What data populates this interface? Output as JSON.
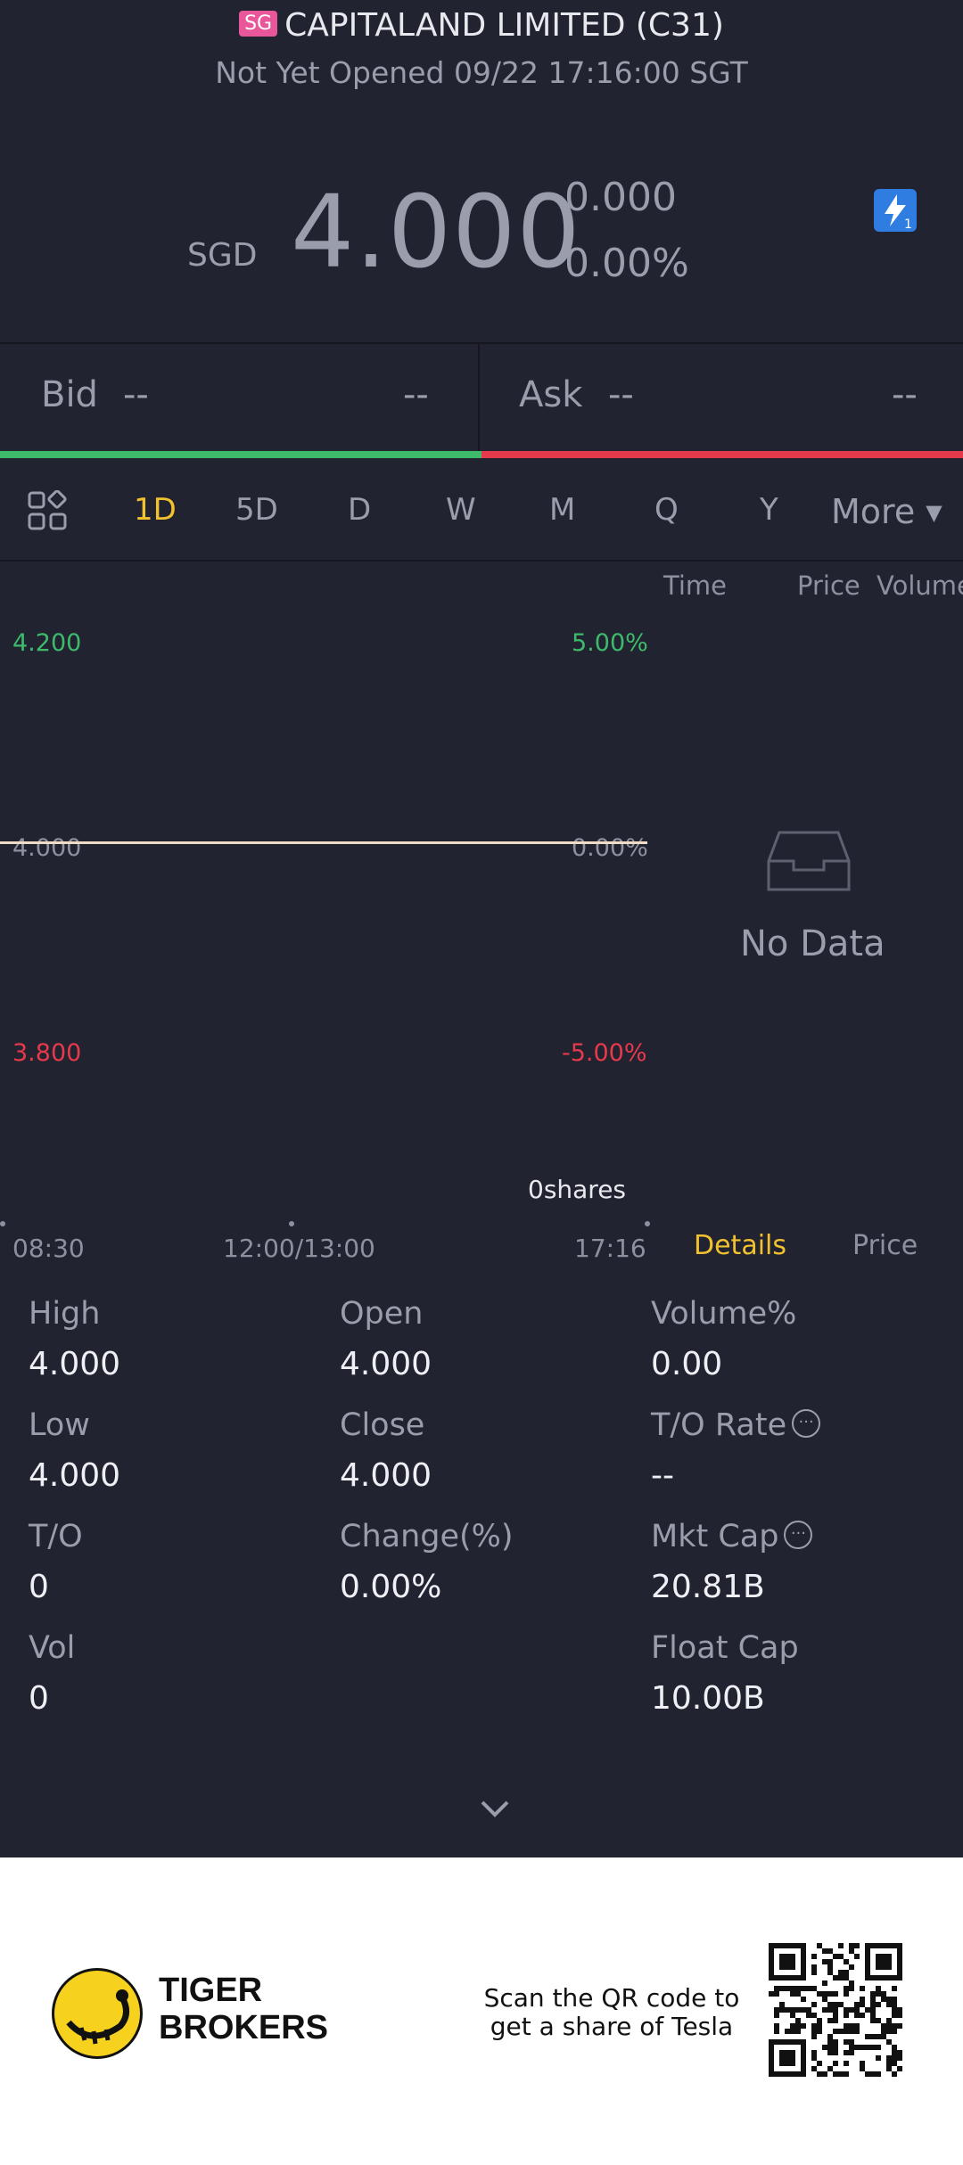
{
  "header": {
    "market_badge": "SG",
    "title": "CAPITALAND LIMITED (C31)",
    "status": "Not Yet Opened 09/22 17:16:00 SGT"
  },
  "quote": {
    "currency": "SGD",
    "price": "4.000",
    "change": "0.000",
    "change_pct": "0.00%",
    "flash_icon": "lightning-badge-icon"
  },
  "bid": {
    "label": "Bid",
    "price": "--",
    "size": "--"
  },
  "ask": {
    "label": "Ask",
    "price": "--",
    "size": "--"
  },
  "tabs": [
    "1D",
    "5D",
    "D",
    "W",
    "M",
    "Q",
    "Y"
  ],
  "active_tab": "1D",
  "more_label": "More",
  "chart_data": {
    "type": "line",
    "y_labels_left": [
      "4.200",
      "4.000",
      "3.800"
    ],
    "y_labels_right": [
      "5.00%",
      "0.00%",
      "-5.00%"
    ],
    "ylim": [
      3.8,
      4.2
    ],
    "x_labels": [
      "08:30",
      "12:00/13:00",
      "17:16"
    ],
    "series": [
      {
        "values": [
          4.0,
          4.0
        ]
      }
    ],
    "volume_label": "0shares",
    "colors": {
      "up": "#3dbb6b",
      "down": "#e6394b",
      "line": "#f0dcc5"
    }
  },
  "side_panel": {
    "headers": [
      "Time",
      "Price",
      "Volume"
    ],
    "empty_text": "No Data",
    "tabs": [
      "Details",
      "Price"
    ],
    "active_tab": "Details"
  },
  "stats": [
    {
      "label": "High",
      "value": "4.000"
    },
    {
      "label": "Open",
      "value": "4.000"
    },
    {
      "label": "Volume%",
      "value": "0.00"
    },
    {
      "label": "Low",
      "value": "4.000"
    },
    {
      "label": "Close",
      "value": "4.000"
    },
    {
      "label": "T/O Rate",
      "value": "--"
    },
    {
      "label": "T/O",
      "value": "0"
    },
    {
      "label": "Change(%)",
      "value": "0.00%"
    },
    {
      "label": "Mkt Cap",
      "value": "20.81B"
    },
    {
      "label": "Vol",
      "value": "0"
    },
    {
      "label": "Float Cap",
      "value": "10.00B"
    }
  ],
  "footer": {
    "brand_line1": "TIGER",
    "brand_line2": "BROKERS",
    "qr_line1": "Scan the QR code to",
    "qr_line2": "get a share of Tesla"
  }
}
